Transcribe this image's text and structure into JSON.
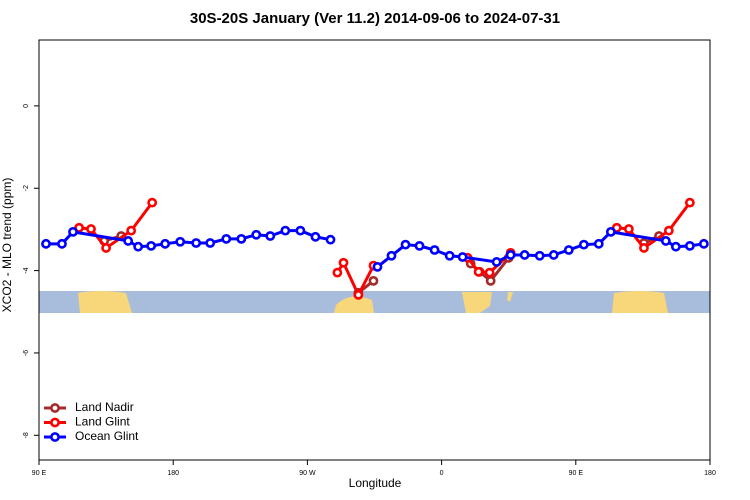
{
  "chart_data": {
    "type": "line",
    "title": "30S-20S January (Ver 11.2)   2014-09-06 to 2024-07-31",
    "xlabel": "Longitude",
    "ylabel": "XCO2 - MLO trend (ppm)",
    "xlim": [
      90,
      540
    ],
    "ylim": [
      -8.6,
      1.6
    ],
    "xticks": [
      {
        "value": 90,
        "label": "90 E"
      },
      {
        "value": 180,
        "label": "180"
      },
      {
        "value": 270,
        "label": "90 W"
      },
      {
        "value": 360,
        "label": "0"
      },
      {
        "value": 450,
        "label": "90 E"
      },
      {
        "value": 540,
        "label": "180"
      }
    ],
    "yticks": [
      -8,
      -6,
      -4,
      -2,
      0
    ],
    "legend": "bottom-left",
    "series": [
      {
        "name": "Land Nadir",
        "color": "#a52a2a",
        "x": [
          133.7,
          145.1,
          null,
          304.2,
          314.3,
          null,
          379.5,
          385.5,
          392.9,
          405.0,
          null,
          495.7,
          505.8
        ],
        "values": [
          -3.28,
          -3.16,
          null,
          -4.54,
          -4.25,
          null,
          -3.83,
          -4.03,
          -4.25,
          -3.69,
          null,
          -3.33,
          -3.16
        ]
      },
      {
        "name": "Land Glint",
        "color": "#ff0000",
        "x": [
          116.9,
          124.9,
          135.0,
          151.8,
          165.9,
          null,
          290.1,
          294.2,
          304.2,
          314.3,
          null,
          377.5,
          384.8,
          392.2,
          406.3,
          null,
          477.5,
          485.6,
          495.7,
          512.4,
          526.5
        ],
        "values": [
          -2.96,
          -2.99,
          -3.45,
          -3.03,
          -2.35,
          null,
          -4.05,
          -3.81,
          -4.59,
          -3.88,
          null,
          -3.69,
          -4.03,
          -4.05,
          -3.57,
          null,
          -2.96,
          -2.99,
          -3.45,
          -3.03,
          -2.35
        ]
      },
      {
        "name": "Ocean Glint",
        "color": "#0000ff",
        "x": [
          94.7,
          105.4,
          112.8,
          149.8,
          156.5,
          165.2,
          174.6,
          184.7,
          195.4,
          204.8,
          215.6,
          225.7,
          235.7,
          245.1,
          255.2,
          265.3,
          275.4,
          285.5,
          null,
          317.0,
          326.4,
          335.8,
          345.2,
          355.3,
          365.4,
          374.1,
          396.9,
          406.3,
          415.7,
          425.8,
          435.2,
          445.3,
          455.4,
          465.4,
          473.5,
          510.4,
          517.1,
          526.5,
          535.9
        ],
        "values": [
          -3.35,
          -3.35,
          -3.06,
          -3.28,
          -3.42,
          -3.4,
          -3.35,
          -3.3,
          -3.33,
          -3.33,
          -3.23,
          -3.23,
          -3.13,
          -3.16,
          -3.03,
          -3.03,
          -3.18,
          -3.25,
          null,
          -3.91,
          -3.64,
          -3.37,
          -3.4,
          -3.5,
          -3.64,
          -3.67,
          -3.79,
          -3.62,
          -3.62,
          -3.64,
          -3.62,
          -3.5,
          -3.37,
          -3.35,
          -3.06,
          -3.28,
          -3.42,
          -3.4,
          -3.35
        ]
      }
    ]
  }
}
